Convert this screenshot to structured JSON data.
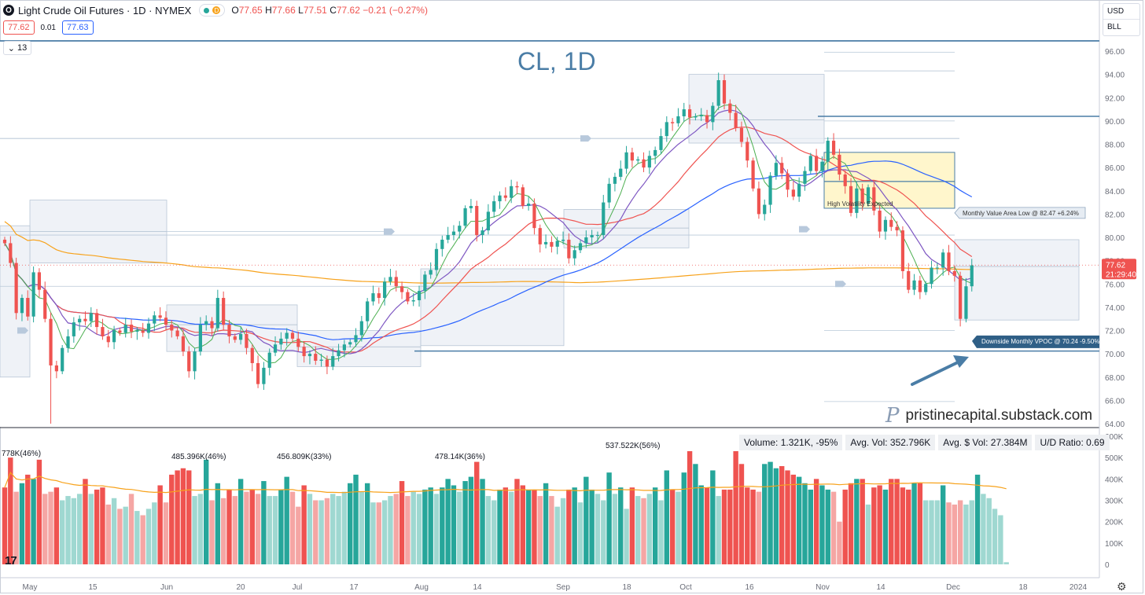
{
  "header": {
    "title": "Light Crude Oil Futures · 1D · NYMEX",
    "badge": "D",
    "open_label": "O",
    "open": "77.65",
    "high_label": "H",
    "high": "77.66",
    "low_label": "L",
    "low": "77.51",
    "close_label": "C",
    "close": "77.62",
    "change": "−0.21 (−0.27%)"
  },
  "quote": {
    "bid": "77.62",
    "spread": "0.01",
    "ask": "77.63"
  },
  "indicators_button": "13",
  "currency": {
    "currency": "USD",
    "unit": "BLL"
  },
  "chart_title": "CL, 1D",
  "price_badge": {
    "price": "77.62",
    "countdown": "21:29:40"
  },
  "volume_stats": {
    "volume": "Volume: 1.321K, -95%",
    "avg_vol": "Avg. Vol: 352.796K",
    "avg_dollar_vol": "Avg. $ Vol: 27.384M",
    "ud_ratio": "U/D Ratio: 0.69"
  },
  "watermark": {
    "text": "pristinecapital.substack.com",
    "icon": "P"
  },
  "colors": {
    "up": "#26a69a",
    "down": "#ef5350",
    "ma_fast": "#4caf50",
    "ma_mid": "#7e57c2",
    "ma_slow": "#ef5350",
    "ma_50": "#2962ff",
    "ma_200": "#f7a21b",
    "accent": "#4a7da6"
  },
  "chart_data": {
    "type": "candlestick",
    "y_range": [
      64,
      96.5
    ],
    "y_ticks": [
      "96.00",
      "94.00",
      "92.00",
      "90.00",
      "88.00",
      "86.00",
      "84.00",
      "82.00",
      "80.00",
      "78.00",
      "76.00",
      "74.00",
      "72.00",
      "70.00",
      "68.00",
      "66.00",
      "64.00"
    ],
    "x_ticks": [
      "May",
      "15",
      "Jun",
      "20",
      "Jul",
      "17",
      "Aug",
      "14",
      "Sep",
      "18",
      "Oct",
      "16",
      "Nov",
      "14",
      "Dec",
      "18",
      "2024"
    ],
    "closes": [
      79.5,
      77.8,
      73.5,
      74.8,
      73.2,
      77.0,
      75.5,
      73.0,
      69.0,
      68.5,
      70.5,
      71.5,
      72.7,
      73.0,
      72.8,
      73.5,
      72.3,
      71.5,
      71.0,
      72.0,
      71.8,
      72.5,
      71.9,
      72.0,
      71.8,
      72.6,
      73.3,
      73.1,
      72.5,
      72.0,
      71.5,
      70.2,
      68.5,
      70.2,
      72.5,
      72.8,
      72.2,
      74.8,
      72.5,
      71.5,
      71.2,
      71.7,
      70.5,
      69.2,
      67.4,
      68.8,
      70.1,
      70.8,
      71.3,
      71.8,
      71.3,
      70.6,
      69.8,
      70.0,
      69.4,
      69.5,
      68.9,
      69.8,
      70.3,
      70.8,
      71.0,
      71.6,
      72.8,
      74.5,
      75.2,
      74.8,
      76.2,
      76.6,
      75.8,
      75.3,
      74.5,
      74.6,
      75.4,
      76.8,
      77.2,
      79.0,
      79.8,
      80.2,
      80.5,
      81.0,
      82.5,
      82.7,
      80.2,
      80.6,
      82.2,
      83.1,
      83.6,
      83.4,
      84.4,
      84.3,
      82.7,
      82.9,
      80.8,
      79.4,
      79.6,
      79.2,
      79.7,
      79.8,
      78.2,
      78.9,
      79.5,
      80.0,
      80.2,
      80.2,
      83.0,
      84.6,
      85.2,
      85.9,
      87.3,
      86.6,
      86.7,
      86.0,
      87.0,
      87.5,
      88.7,
      89.9,
      89.8,
      90.4,
      91.0,
      90.3,
      90.4,
      90.5,
      89.9,
      91.3,
      93.5,
      91.5,
      90.7,
      89.4,
      88.2,
      86.6,
      84.2,
      82.0,
      82.8,
      85.3,
      86.4,
      85.5,
      84.1,
      83.5,
      84.6,
      85.7,
      87.0,
      85.7,
      86.5,
      88.3,
      87.1,
      85.4,
      84.4,
      82.1,
      84.2,
      82.9,
      84.3,
      82.3,
      80.5,
      81.5,
      80.9,
      80.6,
      77.1,
      75.5,
      76.3,
      75.3,
      76.0,
      77.4,
      77.4,
      78.7,
      77.1,
      76.7,
      73.0,
      75.8,
      77.6
    ],
    "ma_fast": "sma 5",
    "ma_mid": "sma 10",
    "ma_slow": "sma 20",
    "ma_50": "sma 50",
    "ma_200": "sma 200",
    "annotations": [
      {
        "text": "High Volatility Expected"
      },
      {
        "text": "Monthly Value Area Low @ 82.47  +6.24%"
      },
      {
        "text": "Downside Monthly VPOC @ 70.24  -9.50%"
      }
    ],
    "volume": {
      "y_ticks": [
        "600K",
        "500K",
        "400K",
        "300K",
        "200K",
        "100K",
        "0"
      ],
      "labels": [
        "778K(46%)",
        "485.396K(46%)",
        "456.809K(33%)",
        "478.14K(36%)",
        "537.522K(56%)"
      ],
      "values": [
        360,
        500,
        340,
        380,
        420,
        400,
        490,
        330,
        340,
        360,
        300,
        320,
        310,
        330,
        400,
        330,
        350,
        360,
        280,
        310,
        260,
        270,
        330,
        250,
        230,
        260,
        290,
        370,
        290,
        420,
        440,
        450,
        440,
        320,
        330,
        490,
        300,
        380,
        310,
        350,
        320,
        400,
        340,
        350,
        330,
        390,
        320,
        320,
        350,
        410,
        340,
        270,
        370,
        330,
        300,
        300,
        310,
        330,
        320,
        340,
        380,
        420,
        340,
        380,
        290,
        290,
        300,
        320,
        330,
        390,
        320,
        340,
        330,
        350,
        360,
        330,
        360,
        400,
        370,
        340,
        390,
        410,
        480,
        400,
        320,
        300,
        350,
        360,
        340,
        400,
        370,
        350,
        350,
        320,
        380,
        320,
        270,
        310,
        350,
        360,
        290,
        410,
        350,
        330,
        300,
        430,
        330,
        360,
        260,
        360,
        320,
        310,
        330,
        360,
        300,
        440,
        350,
        340,
        430,
        530,
        470,
        370,
        360,
        440,
        320,
        350,
        350,
        530,
        470,
        360,
        350,
        340,
        470,
        480,
        450,
        460,
        440,
        420,
        410,
        380,
        350,
        400,
        370,
        350,
        340,
        200,
        350,
        380,
        400,
        400,
        280,
        360,
        370,
        350,
        400,
        400,
        360,
        350,
        380,
        380,
        300,
        300,
        300,
        370,
        290,
        280,
        300,
        280,
        300,
        420,
        330,
        310,
        260,
        230,
        10
      ]
    }
  }
}
